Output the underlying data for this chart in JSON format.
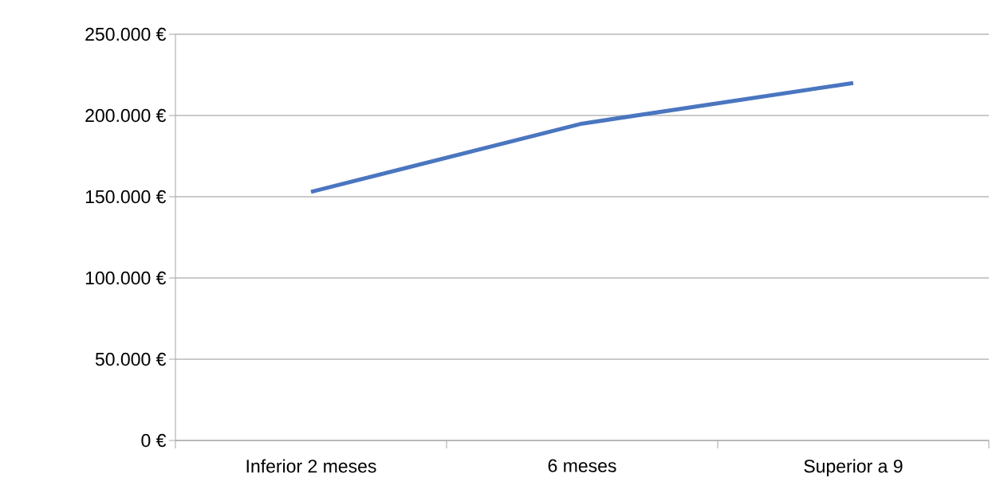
{
  "chart_data": {
    "type": "line",
    "categories": [
      "Inferior 2 meses",
      "6 meses",
      "Superior a 9"
    ],
    "series": [
      {
        "color": "#4a76c0",
        "values": [
          153000,
          195000,
          220000
        ]
      }
    ],
    "ylim": [
      0,
      250000
    ],
    "yticks": [
      {
        "value": 0,
        "label": "0 €"
      },
      {
        "value": 50000,
        "label": "50.000 €"
      },
      {
        "value": 100000,
        "label": "100.000 €"
      },
      {
        "value": 150000,
        "label": "150.000 €"
      },
      {
        "value": 200000,
        "label": "200.000 €"
      },
      {
        "value": 250000,
        "label": "250.000 €"
      }
    ],
    "grid": "y",
    "marker": "none",
    "line_style": "solid"
  }
}
